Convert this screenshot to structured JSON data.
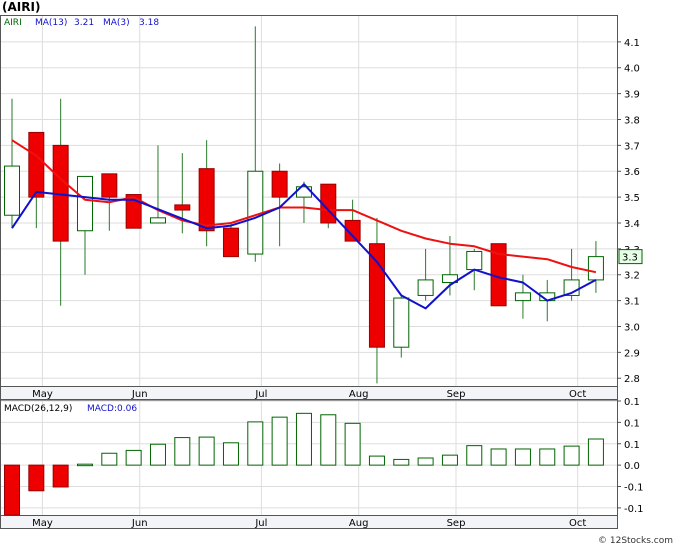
{
  "symbol_title": "(AIRI)",
  "legend": {
    "symbol": "AIRI",
    "ma13_label": "MA(13)",
    "ma13_value": "3.21",
    "ma3_label": "MA(3)",
    "ma3_value": "3.18"
  },
  "last_price_tag": "3.3",
  "macd_label": "MACD(26,12,9)",
  "macd_value_label": "MACD:0.06",
  "watermark": "© 12Stocks.com",
  "colors": {
    "up": "#006400",
    "down": "#ee0000",
    "ma13": "#ee1111",
    "ma3": "#1111cc",
    "wick": "#2a7a2a",
    "grid": "#dddddd",
    "frame": "#555555",
    "price_tag_bg": "#e6ffe6"
  },
  "chart_data": [
    {
      "type": "candlestick",
      "title": "(AIRI)",
      "ylim": [
        2.77,
        4.2
      ],
      "y_ticks": [
        "2.8",
        "2.9",
        "3.0",
        "3.1",
        "3.2",
        "3.3",
        "3.4",
        "3.5",
        "3.6",
        "3.7",
        "3.8",
        "3.9",
        "4.0",
        "4.1"
      ],
      "x_tick_labels": [
        "May",
        "Jun",
        "Jul",
        "Aug",
        "Sep",
        "Oct"
      ],
      "x_tick_index": [
        1.25,
        5.25,
        10.25,
        14.25,
        18.25,
        23.25
      ],
      "bars": [
        {
          "o": 3.43,
          "h": 3.88,
          "l": 3.38,
          "c": 3.62
        },
        {
          "o": 3.75,
          "h": 3.75,
          "l": 3.38,
          "c": 3.5
        },
        {
          "o": 3.7,
          "h": 3.88,
          "l": 3.08,
          "c": 3.33
        },
        {
          "o": 3.37,
          "h": 3.58,
          "l": 3.2,
          "c": 3.58
        },
        {
          "o": 3.59,
          "h": 3.59,
          "l": 3.37,
          "c": 3.5
        },
        {
          "o": 3.51,
          "h": 3.51,
          "l": 3.38,
          "c": 3.38
        },
        {
          "o": 3.4,
          "h": 3.7,
          "l": 3.4,
          "c": 3.42
        },
        {
          "o": 3.47,
          "h": 3.67,
          "l": 3.36,
          "c": 3.45
        },
        {
          "o": 3.61,
          "h": 3.72,
          "l": 3.31,
          "c": 3.37
        },
        {
          "o": 3.38,
          "h": 3.4,
          "l": 3.27,
          "c": 3.27
        },
        {
          "o": 3.28,
          "h": 4.16,
          "l": 3.25,
          "c": 3.6
        },
        {
          "o": 3.6,
          "h": 3.63,
          "l": 3.31,
          "c": 3.5
        },
        {
          "o": 3.5,
          "h": 3.56,
          "l": 3.4,
          "c": 3.54
        },
        {
          "o": 3.55,
          "h": 3.55,
          "l": 3.38,
          "c": 3.4
        },
        {
          "o": 3.41,
          "h": 3.49,
          "l": 3.33,
          "c": 3.33
        },
        {
          "o": 3.32,
          "h": 3.42,
          "l": 2.78,
          "c": 2.92
        },
        {
          "o": 2.92,
          "h": 3.12,
          "l": 2.88,
          "c": 3.11
        },
        {
          "o": 3.12,
          "h": 3.3,
          "l": 3.1,
          "c": 3.18
        },
        {
          "o": 3.17,
          "h": 3.35,
          "l": 3.12,
          "c": 3.2
        },
        {
          "o": 3.22,
          "h": 3.3,
          "l": 3.14,
          "c": 3.29
        },
        {
          "o": 3.32,
          "h": 3.32,
          "l": 3.08,
          "c": 3.08
        },
        {
          "o": 3.1,
          "h": 3.2,
          "l": 3.03,
          "c": 3.13
        },
        {
          "o": 3.1,
          "h": 3.18,
          "l": 3.02,
          "c": 3.13
        },
        {
          "o": 3.12,
          "h": 3.3,
          "l": 3.1,
          "c": 3.18
        },
        {
          "o": 3.18,
          "h": 3.33,
          "l": 3.13,
          "c": 3.27
        }
      ],
      "series": [
        {
          "name": "MA(13)",
          "values": [
            3.72,
            3.66,
            3.57,
            3.49,
            3.48,
            3.5,
            3.45,
            3.41,
            3.39,
            3.4,
            3.43,
            3.46,
            3.46,
            3.45,
            3.45,
            3.41,
            3.37,
            3.34,
            3.32,
            3.31,
            3.28,
            3.27,
            3.26,
            3.23,
            3.21
          ]
        },
        {
          "name": "MA(3)",
          "values": [
            3.38,
            3.52,
            null,
            null,
            3.49,
            3.49,
            null,
            null,
            3.38,
            3.39,
            3.42,
            3.46,
            3.55,
            null,
            null,
            3.25,
            3.12,
            3.07,
            3.16,
            3.22,
            3.19,
            3.17,
            3.1,
            3.13,
            3.18
          ]
        }
      ]
    },
    {
      "type": "bar",
      "title": "MACD(26,12,9)",
      "ylim": [
        -0.105,
        0.135
      ],
      "y_ticks": [
        "-0.1",
        "-0.1",
        "0.0",
        "0.1",
        "0.1",
        "0.1"
      ],
      "x_tick_labels": [
        "May",
        "Jun",
        "Jul",
        "Aug",
        "Sep",
        "Oct"
      ],
      "values": [
        -0.105,
        -0.054,
        -0.046,
        0.002,
        0.025,
        0.031,
        0.044,
        0.058,
        0.059,
        0.047,
        0.091,
        0.101,
        0.109,
        0.106,
        0.088,
        0.019,
        0.012,
        0.015,
        0.021,
        0.041,
        0.034,
        0.034,
        0.034,
        0.04,
        0.055
      ]
    }
  ]
}
